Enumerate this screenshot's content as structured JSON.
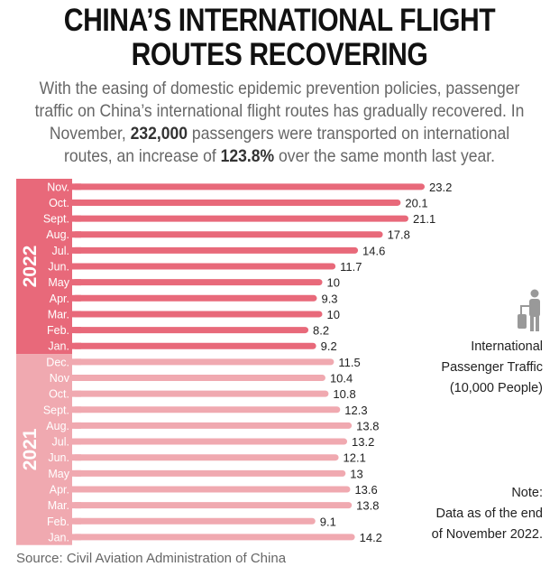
{
  "header": {
    "title_line1": "CHINA’S INTERNATIONAL FLIGHT",
    "title_line2": "ROUTES RECOVERING",
    "subtitle_parts": [
      "With the easing of domestic epidemic prevention policies, passenger traffic on China’s international flight routes has gradually recovered. In November, ",
      "232,000",
      " passengers were transported on international routes, an increase of ",
      "123.8%",
      " over the same month last year."
    ]
  },
  "legend": {
    "icon": "traveler-with-suitcase-icon",
    "line1": "International",
    "line2": "Passenger Traffic",
    "line3": "(10,000 People)"
  },
  "note": {
    "line1": "Note:",
    "line2": "Data as of the end",
    "line3": "of November 2022."
  },
  "source": "Source: Civil Aviation Administration of China",
  "chart_data": {
    "type": "bar",
    "orientation": "horizontal",
    "unit": "10,000 People",
    "groups": [
      {
        "name": "2022",
        "color": "#e8697a",
        "categories": [
          "Nov.",
          "Oct.",
          "Sept.",
          "Aug.",
          "Jul.",
          "Jun.",
          "May",
          "Apr.",
          "Mar.",
          "Feb.",
          "Jan."
        ],
        "values": [
          23.2,
          20.1,
          21.1,
          17.8,
          14.6,
          11.7,
          10,
          9.3,
          10,
          8.2,
          9.2
        ]
      },
      {
        "name": "2021",
        "color": "#f0a9b0",
        "categories": [
          "Dec.",
          "Nov",
          "Oct.",
          "Sept.",
          "Aug.",
          "Jul.",
          "Jun.",
          "May",
          "Apr.",
          "Mar.",
          "Feb.",
          "Jan."
        ],
        "values": [
          11.5,
          10.4,
          10.8,
          12.3,
          13.8,
          13.2,
          12.1,
          13,
          13.6,
          13.8,
          9.1,
          14.2
        ]
      }
    ]
  }
}
